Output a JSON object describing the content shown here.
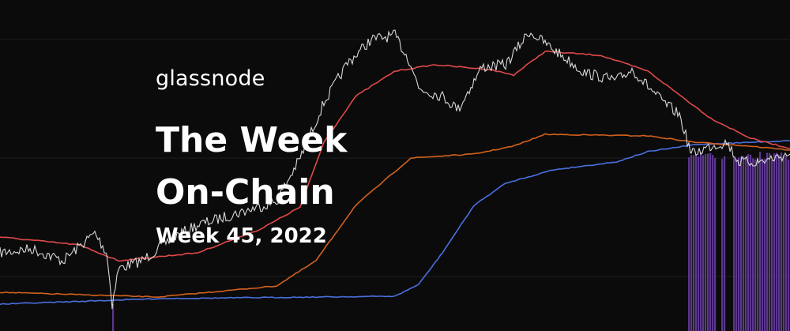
{
  "brand": "glassnode",
  "title_lines": [
    "The Week",
    "On-Chain"
  ],
  "subtitle": "Week 45, 2022"
}
